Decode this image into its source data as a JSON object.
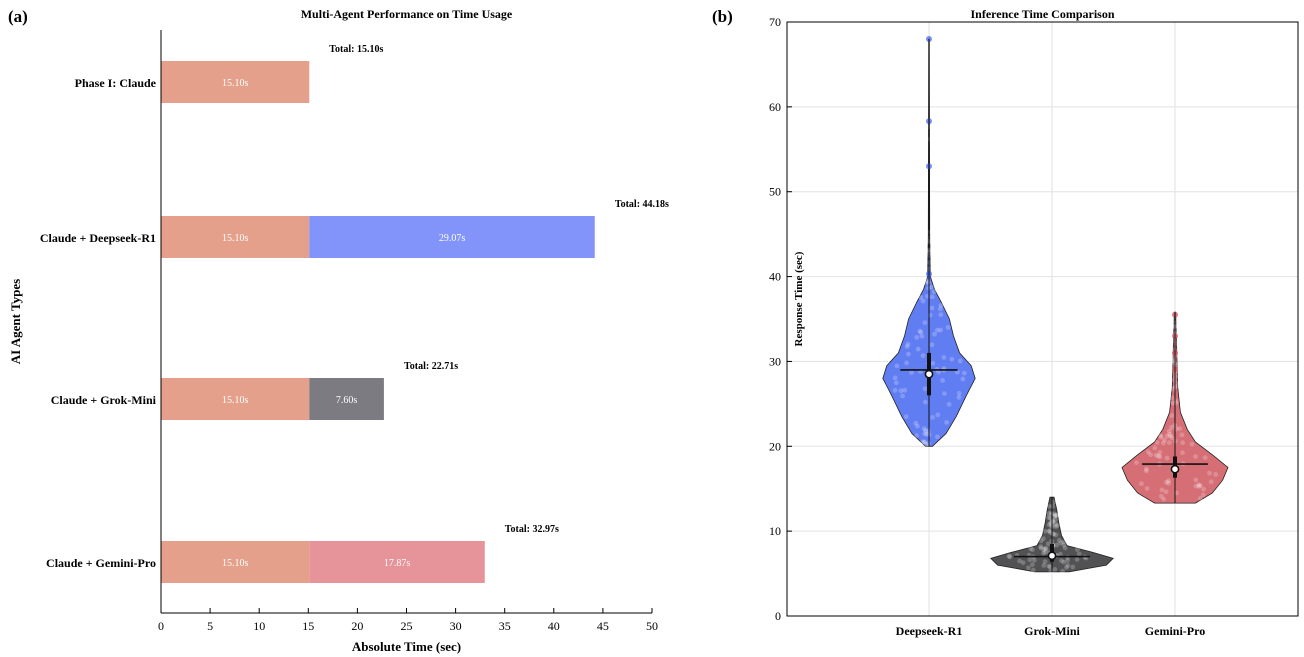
{
  "panel_a_label": "(a)",
  "panel_b_label": "(b)",
  "chart_data": [
    {
      "type": "bar",
      "orientation": "horizontal",
      "stacked": true,
      "title": "Multi-Agent Performance on Time Usage",
      "xlabel": "Absolute Time (sec)",
      "ylabel": "AI Agent Types",
      "xlim": [
        0,
        50
      ],
      "xticks": [
        0,
        5,
        10,
        15,
        20,
        25,
        30,
        35,
        40,
        45,
        50
      ],
      "grid": false,
      "categories": [
        "Phase I: Claude",
        "Claude + Deepseek-R1",
        "Claude + Grok-Mini",
        "Claude + Gemini-Pro"
      ],
      "segments": [
        [
          {
            "value": 15.1,
            "label": "15.10s",
            "color": "#e4a08a"
          }
        ],
        [
          {
            "value": 15.1,
            "label": "15.10s",
            "color": "#e4a08a"
          },
          {
            "value": 29.07,
            "label": "29.07s",
            "color": "#8294fa"
          }
        ],
        [
          {
            "value": 15.1,
            "label": "15.10s",
            "color": "#e4a08a"
          },
          {
            "value": 7.6,
            "label": "7.60s",
            "color": "#7b7b81"
          }
        ],
        [
          {
            "value": 15.1,
            "label": "15.10s",
            "color": "#e4a08a"
          },
          {
            "value": 17.87,
            "label": "17.87s",
            "color": "#e6939a"
          }
        ]
      ],
      "totals": [
        {
          "value": 15.1,
          "label": "Total: 15.10s"
        },
        {
          "value": 44.18,
          "label": "Total: 44.18s"
        },
        {
          "value": 22.71,
          "label": "Total: 22.71s"
        },
        {
          "value": 32.97,
          "label": "Total: 32.97s"
        }
      ]
    },
    {
      "type": "violin",
      "title": "Inference Time Comparison",
      "xlabel": "",
      "ylabel": "Response Time (sec)",
      "ylim": [
        0,
        70
      ],
      "yticks": [
        0,
        10,
        20,
        30,
        40,
        50,
        60,
        70
      ],
      "grid": true,
      "categories": [
        "Deepseek-R1",
        "Grok-Mini",
        "Gemini-Pro"
      ],
      "series": [
        {
          "color": "#4b6bf0",
          "median": 28.5,
          "mean": 29.0,
          "q1": 26.0,
          "q3": 31.0,
          "min": 20.0,
          "max": 68.0,
          "profile": [
            [
              20.0,
              0.05
            ],
            [
              21.5,
              0.25
            ],
            [
              23.5,
              0.4
            ],
            [
              26.0,
              0.55
            ],
            [
              28.0,
              0.68
            ],
            [
              29.5,
              0.62
            ],
            [
              31.0,
              0.45
            ],
            [
              33.0,
              0.36
            ],
            [
              35.0,
              0.3
            ],
            [
              37.0,
              0.18
            ],
            [
              38.5,
              0.08
            ],
            [
              40.0,
              0.02
            ],
            [
              45.0,
              0.01
            ],
            [
              68.0,
              0.005
            ]
          ],
          "outliers": [
            40.3,
            53.0,
            58.3,
            68.0
          ]
        },
        {
          "color": "#3a3a3e",
          "median": 7.1,
          "mean": 7.0,
          "q1": 6.4,
          "q3": 8.5,
          "min": 5.2,
          "max": 14.0,
          "profile": [
            [
              5.2,
              0.25
            ],
            [
              6.0,
              0.8
            ],
            [
              6.8,
              0.9
            ],
            [
              7.5,
              0.6
            ],
            [
              8.3,
              0.22
            ],
            [
              9.5,
              0.14
            ],
            [
              11.0,
              0.1
            ],
            [
              12.5,
              0.07
            ],
            [
              14.0,
              0.03
            ]
          ],
          "outliers": []
        },
        {
          "color": "#d05a63",
          "median": 17.3,
          "mean": 17.9,
          "q1": 16.3,
          "q3": 18.8,
          "min": 13.3,
          "max": 35.8,
          "profile": [
            [
              13.3,
              0.3
            ],
            [
              14.5,
              0.55
            ],
            [
              16.0,
              0.7
            ],
            [
              17.5,
              0.78
            ],
            [
              19.0,
              0.55
            ],
            [
              20.5,
              0.3
            ],
            [
              22.0,
              0.18
            ],
            [
              24.0,
              0.08
            ],
            [
              27.0,
              0.04
            ],
            [
              30.0,
              0.03
            ],
            [
              33.0,
              0.02
            ],
            [
              35.8,
              0.01
            ]
          ],
          "outliers": [
            29.0,
            31.0,
            33.0,
            35.5
          ]
        }
      ]
    }
  ]
}
